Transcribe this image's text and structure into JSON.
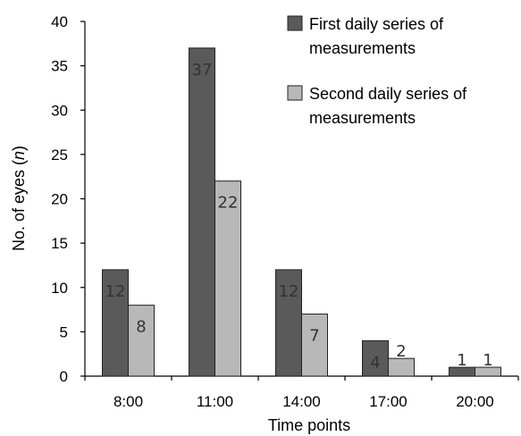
{
  "chart_data": {
    "type": "bar",
    "categories": [
      "8:00",
      "11:00",
      "14:00",
      "17:00",
      "20:00"
    ],
    "series": [
      {
        "name": "First daily series of measurements",
        "values": [
          12,
          37,
          12,
          4,
          1
        ],
        "color": "#5a5a5a"
      },
      {
        "name": "Second daily series of measurements",
        "values": [
          8,
          22,
          7,
          2,
          1
        ],
        "color": "#b8b8b8"
      }
    ],
    "xlabel": "Time points",
    "ylabel_prefix": "No. of eyes (",
    "ylabel_var": "n",
    "ylabel_suffix": ")",
    "ylim": [
      0,
      40
    ],
    "yticks": [
      0,
      5,
      10,
      15,
      20,
      25,
      30,
      35,
      40
    ],
    "grid": false,
    "legend_position": "top-right",
    "legend_lines": [
      [
        "First daily series of",
        "measurements"
      ],
      [
        "Second daily series of",
        "measurements"
      ]
    ]
  }
}
